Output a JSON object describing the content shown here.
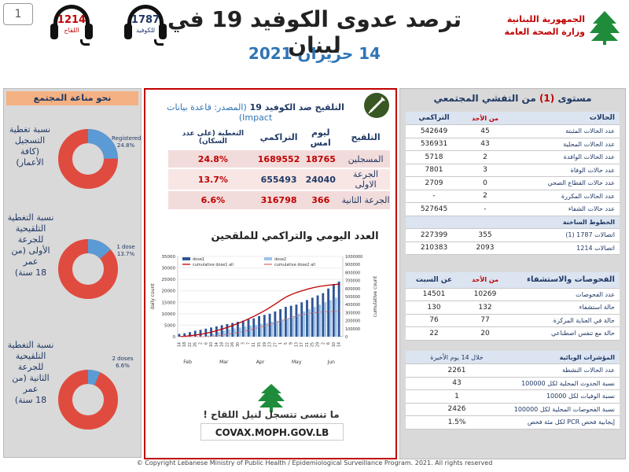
{
  "page_number": "1",
  "header": {
    "title": "ترصد عدوى الكوفيد 19 في لبنان",
    "date": "14 حزيران 2021",
    "logo_line1": "الجمهورية اللبنانية",
    "logo_line2": "وزارة الصحة العامة",
    "vaccines_count": "1214",
    "vaccines_label": "اللقاح",
    "covid_count": "1787",
    "covid_label": "للكوفيد"
  },
  "left_panel": {
    "title": "نحو مناعة المجتمع",
    "donuts": [
      {
        "label_lines": [
          "نسبة تغطية",
          "التسجيل (كافة",
          "الأعمار)"
        ],
        "tag_lines": [
          "Registered",
          "24.8%"
        ],
        "fraction": 0.248,
        "color_filled": "#5b9bd5",
        "color_rest": "#e04b3f"
      },
      {
        "label_lines": [
          "نسبة التغطية",
          "التلقيحية للجرعة",
          "الأولى (من عمر",
          "18 سنة)"
        ],
        "tag_lines": [
          "1 dose",
          "13.7%"
        ],
        "fraction": 0.137,
        "color_filled": "#5b9bd5",
        "color_rest": "#e04b3f"
      },
      {
        "label_lines": [
          "نسبة التغطية",
          "التلقيحية للجرعة",
          "الثانية (من عمر",
          "18 سنة)"
        ],
        "tag_lines": [
          "2 doses",
          "6.6%"
        ],
        "fraction": 0.066,
        "color_filled": "#5b9bd5",
        "color_rest": "#e04b3f"
      }
    ]
  },
  "vaccination": {
    "title": "التلقيح ضد الكوفيد 19",
    "source": "(المصدر: قاعدة بيانات Impact)",
    "headers": [
      "التلقيح",
      "ليوم امس",
      "التراكمي",
      "التغطية (على عدد السكان)"
    ],
    "rows": [
      {
        "label": "المسجلين",
        "yesterday": "18765",
        "cumulative": "1689552",
        "coverage": "24.8%"
      },
      {
        "label": "الجرعة الاولى",
        "yesterday": "24040",
        "cumulative": "655493",
        "coverage": "13.7%"
      },
      {
        "label": "الجرعة الثانية",
        "yesterday": "366",
        "cumulative": "316798",
        "coverage": "6.6%"
      }
    ]
  },
  "chart_title": "العدد اليومي والتراكمي للملقحين",
  "chart_data": {
    "type": "bar",
    "legend": [
      "dose1",
      "dose2",
      "cumulative dose1 all",
      "cumulative dose2 all"
    ],
    "ylabel": "daily count",
    "y2label": "cumulative count",
    "ylim": [
      0,
      35000
    ],
    "y2lim": [
      0,
      1000000
    ],
    "yticks": [
      "0",
      "5000",
      "10000",
      "15000",
      "20000",
      "25000",
      "30000",
      "35000"
    ],
    "y2ticks": [
      "0",
      "100000",
      "200000",
      "300000",
      "400000",
      "500000",
      "600000",
      "700000",
      "800000",
      "900000",
      "1000000"
    ],
    "months": [
      "Feb",
      "Mar",
      "Apr",
      "May",
      "Jun"
    ],
    "x_days": [
      "14",
      "18",
      "22",
      "26",
      "2",
      "6",
      "10",
      "14",
      "18",
      "22",
      "26",
      "30",
      "3",
      "7",
      "11",
      "15",
      "19",
      "23",
      "27",
      "1",
      "5",
      "9",
      "13",
      "17",
      "21",
      "25",
      "29",
      "2",
      "6",
      "10",
      "14"
    ],
    "dose1": [
      1200,
      1500,
      2000,
      2600,
      3000,
      3500,
      4000,
      4500,
      5000,
      5500,
      6000,
      6500,
      7000,
      7500,
      8000,
      9000,
      9500,
      10000,
      11000,
      12000,
      13000,
      13500,
      14000,
      15000,
      16000,
      17000,
      18000,
      19000,
      21000,
      23000,
      24040
    ],
    "dose2": [
      0,
      0,
      0,
      0,
      0,
      500,
      1200,
      2000,
      2600,
      3200,
      3600,
      4000,
      4400,
      4800,
      5200,
      5600,
      6000,
      6500,
      7000,
      7500,
      8000,
      9000,
      10000,
      11000,
      12000,
      13000,
      14000,
      15000,
      16000,
      17000,
      366
    ],
    "cumulative_dose1": [
      2000,
      6000,
      14000,
      22000,
      32000,
      45000,
      60000,
      78000,
      98000,
      120000,
      145000,
      170000,
      198000,
      228000,
      260000,
      295000,
      332000,
      372000,
      415000,
      460000,
      500000,
      530000,
      555000,
      575000,
      595000,
      612000,
      625000,
      635000,
      643000,
      650000,
      655493
    ],
    "cumulative_dose2": [
      0,
      0,
      0,
      0,
      0,
      1000,
      5000,
      12000,
      20000,
      30000,
      42000,
      55000,
      70000,
      85000,
      100000,
      118000,
      136000,
      156000,
      176000,
      198000,
      220000,
      240000,
      258000,
      274000,
      288000,
      298000,
      305000,
      310000,
      313000,
      315000,
      316798
    ]
  },
  "cta": {
    "text": "ما تنسى تتسجل لنيل اللقاح !",
    "link": "COVAX.MOPH.GOV.LB"
  },
  "right_panel": {
    "title_pre": "مستوى",
    "title_level": "(1)",
    "title_post": "من التفشي المجتمعي",
    "cases_header": [
      "الحالات",
      "من الأحد",
      "التراكمي"
    ],
    "cases": [
      {
        "label": "عدد الحالات المثبتة",
        "since_sunday": "45",
        "cumulative": "542649"
      },
      {
        "label": "عدد الحالات المحلية",
        "since_sunday": "43",
        "cumulative": "536931"
      },
      {
        "label": "عدد الحالات الوافدة",
        "since_sunday": "2",
        "cumulative": "5718"
      },
      {
        "label": "عدد حالات الوفاة",
        "since_sunday": "3",
        "cumulative": "7801"
      },
      {
        "label": "عدد حالات القطاع الصحي",
        "since_sunday": "0",
        "cumulative": "2709"
      },
      {
        "label": "عدد الحالات المكررة",
        "since_sunday": "2",
        "cumulative": "-"
      },
      {
        "label": "عدد حالات الشفاء",
        "since_sunday": "-",
        "cumulative": "527645"
      }
    ],
    "hotlines_title": "الخطوط الساخنة",
    "hotlines": [
      {
        "label": "اتصالات 1787 (1)",
        "since_sunday": "355",
        "cumulative": "227399"
      },
      {
        "label": "اتصالات 1214",
        "since_sunday": "2093",
        "cumulative": "210383"
      }
    ],
    "hosp_header": [
      "الفحوصات والاستشفاء",
      "من الأحد",
      "عن السبت"
    ],
    "hosp": [
      {
        "label": "عدد الفحوصات",
        "since_sunday": "10269",
        "since_saturday": "14501"
      },
      {
        "label": "حالة استشفاء",
        "since_sunday": "132",
        "since_saturday": "130"
      },
      {
        "label": "حالة في العناية المركزة",
        "since_sunday": "77",
        "since_saturday": "76"
      },
      {
        "label": "حالة مع تنفس اصطناعي",
        "since_sunday": "20",
        "since_saturday": "22"
      }
    ],
    "epi_title": "المؤشرات الوبائية",
    "epi_subtitle": "خلال 14 يوم الأخيرة",
    "epi": [
      {
        "label": "عدد الحالات النشطة",
        "value": "2261"
      },
      {
        "label": "نسبة الحدوث المحلية لكل 100000",
        "value": "43"
      },
      {
        "label": "نسبة الوفيات لكل 10000",
        "value": "1"
      },
      {
        "label": "نسبة الفحوصات المحلية لكل 100000",
        "value": "2426"
      },
      {
        "label": "إيجابية فحص PCR لكل مئة فحص",
        "value": "1.5%"
      }
    ]
  },
  "footer": {
    "copyright": "© Copyright Lebanese Ministry of Public Health / Epidemiological Surveillance Program. 2021. All rights reserved"
  }
}
